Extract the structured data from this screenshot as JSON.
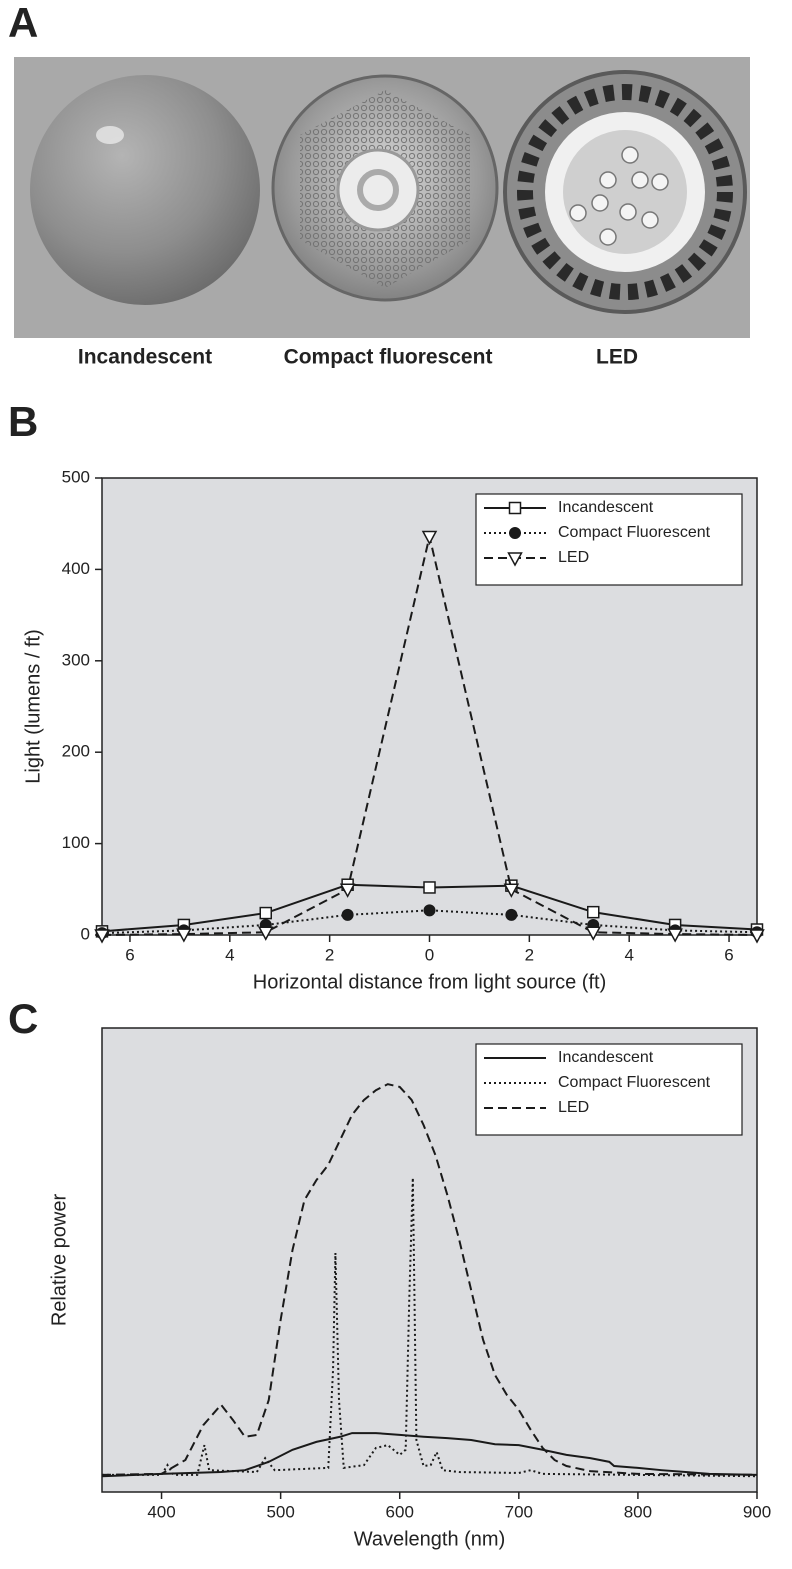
{
  "figure": {
    "panel_a": {
      "label": "A",
      "captions": [
        "Incandescent",
        "Compact fluorescent",
        "LED"
      ]
    }
  },
  "chart_data": [
    {
      "type": "line",
      "panel_label": "B",
      "x_label": "Horizontal distance from light source (ft)",
      "y_label": "Light (lumens / ft)",
      "x": [
        -6.56,
        -4.92,
        -3.28,
        -1.64,
        0,
        1.64,
        3.28,
        4.92,
        6.56
      ],
      "xlim": [
        -6.56,
        6.56
      ],
      "ylim": [
        0,
        500
      ],
      "xticks": [
        {
          "value": -6,
          "label": "6"
        },
        {
          "value": -4,
          "label": "4"
        },
        {
          "value": -2,
          "label": "2"
        },
        0,
        2,
        4,
        6
      ],
      "yticks": [
        0,
        100,
        200,
        300,
        400,
        500
      ],
      "legend": "upper right",
      "series": [
        {
          "name": "Incandescent",
          "color": "#1a1a1a",
          "line_style": "solid",
          "marker": "square",
          "values": [
            4,
            11,
            24,
            55,
            52,
            54,
            25,
            11,
            6
          ]
        },
        {
          "name": "Compact Fluorescent",
          "color": "#1a1a1a",
          "line_style": "dotted",
          "marker": "circle",
          "values": [
            2,
            5,
            11,
            22,
            27,
            22,
            11,
            5,
            3
          ]
        },
        {
          "name": "LED",
          "color": "#1a1a1a",
          "line_style": "dashed",
          "marker": "triangle-down",
          "values": [
            0,
            1,
            3,
            50,
            436,
            50,
            3,
            1,
            0
          ]
        }
      ]
    },
    {
      "type": "line",
      "panel_label": "C",
      "x_label": "Wavelength (nm)",
      "y_label": "Relative power",
      "xlim": [
        350,
        900
      ],
      "ylim": [
        0,
        1
      ],
      "xticks": [
        400,
        500,
        600,
        700,
        800,
        900
      ],
      "legend": "upper right",
      "series": [
        {
          "name": "Incandescent",
          "color": "#1a1a1a",
          "line_style": "solid",
          "x": [
            350,
            400,
            450,
            470,
            490,
            510,
            530,
            550,
            560,
            580,
            600,
            620,
            640,
            660,
            680,
            700,
            720,
            740,
            760,
            776,
            780,
            800,
            820,
            840,
            860,
            900
          ],
          "values": [
            0.034,
            0.039,
            0.043,
            0.047,
            0.065,
            0.091,
            0.108,
            0.119,
            0.127,
            0.127,
            0.123,
            0.119,
            0.116,
            0.112,
            0.103,
            0.101,
            0.091,
            0.08,
            0.073,
            0.065,
            0.056,
            0.052,
            0.047,
            0.043,
            0.039,
            0.037
          ]
        },
        {
          "name": "Compact Fluorescent",
          "color": "#1a1a1a",
          "line_style": "dotted",
          "x": [
            350,
            400,
            405,
            410,
            430,
            436,
            440,
            480,
            487,
            495,
            540,
            544,
            546,
            549,
            553,
            570,
            580,
            590,
            600,
            605,
            608,
            611,
            614,
            620,
            626,
            631,
            636,
            650,
            700,
            710,
            720,
            900
          ],
          "values": [
            0.037,
            0.037,
            0.058,
            0.037,
            0.037,
            0.101,
            0.047,
            0.043,
            0.073,
            0.047,
            0.052,
            0.263,
            0.515,
            0.198,
            0.052,
            0.058,
            0.095,
            0.101,
            0.08,
            0.091,
            0.414,
            0.677,
            0.112,
            0.056,
            0.058,
            0.086,
            0.047,
            0.043,
            0.041,
            0.047,
            0.039,
            0.034
          ]
        },
        {
          "name": "LED",
          "color": "#1a1a1a",
          "line_style": "dashed",
          "x": [
            350,
            400,
            420,
            435,
            450,
            460,
            470,
            480,
            490,
            500,
            510,
            520,
            530,
            540,
            550,
            560,
            570,
            580,
            590,
            600,
            610,
            620,
            630,
            640,
            650,
            660,
            670,
            680,
            690,
            700,
            710,
            720,
            730,
            740,
            760,
            800,
            900
          ],
          "values": [
            0.037,
            0.039,
            0.069,
            0.144,
            0.188,
            0.155,
            0.119,
            0.123,
            0.198,
            0.371,
            0.522,
            0.629,
            0.672,
            0.705,
            0.759,
            0.813,
            0.845,
            0.866,
            0.879,
            0.873,
            0.845,
            0.791,
            0.726,
            0.64,
            0.543,
            0.435,
            0.328,
            0.252,
            0.209,
            0.177,
            0.134,
            0.095,
            0.069,
            0.056,
            0.045,
            0.039,
            0.037
          ]
        }
      ]
    }
  ]
}
